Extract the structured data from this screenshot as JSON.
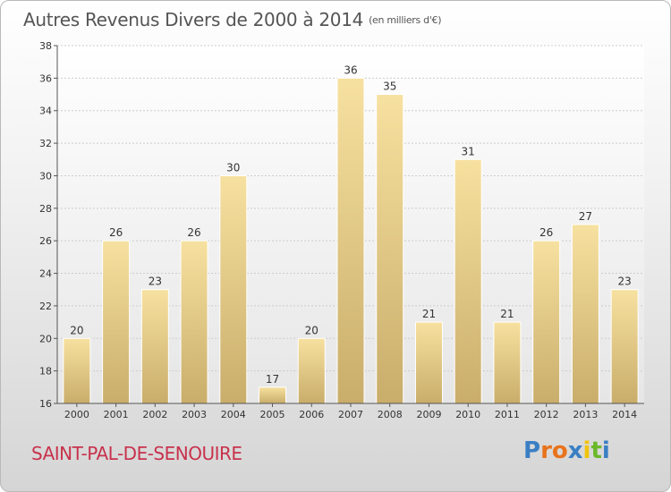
{
  "header": {
    "title": "Autres Revenus Divers de 2000 à 2014",
    "unit": "(en milliers d'€)"
  },
  "footer": {
    "town": "SAINT-PAL-DE-SENOUIRE",
    "logo": "Proxiti",
    "logo_colors": [
      "#3a7fc4",
      "#e8731c",
      "#e8731c",
      "#3a7fc4",
      "#f1c40f",
      "#6ab82a",
      "#3a7fc4"
    ]
  },
  "colors": {
    "bar_light": "#f7e1a0",
    "bar_dark": "#c9ad6a",
    "grid": "#cccccc",
    "axis": "#555555",
    "label": "#333333"
  },
  "chart_data": {
    "type": "bar",
    "categories": [
      "2000",
      "2001",
      "2002",
      "2003",
      "2004",
      "2005",
      "2006",
      "2007",
      "2008",
      "2009",
      "2010",
      "2011",
      "2012",
      "2013",
      "2014"
    ],
    "values": [
      20,
      26,
      23,
      26,
      30,
      17,
      20,
      36,
      35,
      21,
      31,
      21,
      26,
      27,
      23
    ],
    "ylim": [
      16,
      38
    ],
    "yticks": [
      16,
      18,
      20,
      22,
      24,
      26,
      28,
      30,
      32,
      34,
      36,
      38
    ],
    "grid": true
  }
}
